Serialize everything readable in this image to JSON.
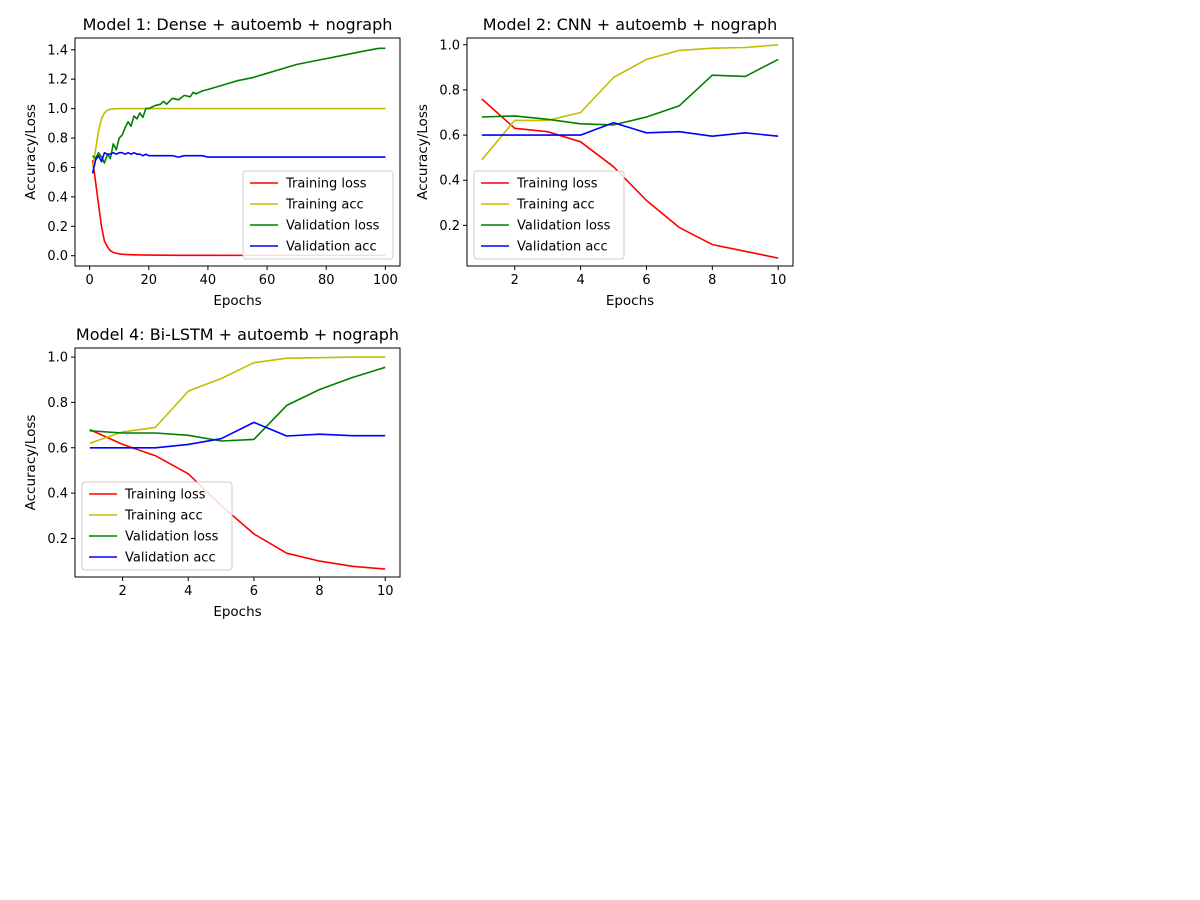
{
  "chart_data": [
    {
      "type": "line",
      "title": "Model 1: Dense + autoemb + nograph",
      "xlabel": "Epochs",
      "ylabel": "Accuracy/Loss",
      "xlim": [
        -4.95,
        104.95
      ],
      "ylim": [
        -0.07,
        1.48
      ],
      "xticks": [
        0,
        20,
        40,
        60,
        80,
        100
      ],
      "xtick_labels": [
        "0",
        "20",
        "40",
        "60",
        "80",
        "100"
      ],
      "yticks": [
        0.0,
        0.2,
        0.4,
        0.6,
        0.8,
        1.0,
        1.2,
        1.4
      ],
      "ytick_labels": [
        "0.0",
        "0.2",
        "0.4",
        "0.6",
        "0.8",
        "1.0",
        "1.2",
        "1.4"
      ],
      "legend_position": "lower-right",
      "series": [
        {
          "name": "Training loss",
          "color": "#ff0000",
          "x": [
            1,
            2,
            3,
            4,
            5,
            6,
            7,
            8,
            10,
            12,
            15,
            20,
            30,
            40,
            60,
            80,
            100
          ],
          "y": [
            0.65,
            0.5,
            0.35,
            0.2,
            0.1,
            0.06,
            0.035,
            0.022,
            0.012,
            0.008,
            0.006,
            0.004,
            0.003,
            0.003,
            0.002,
            0.002,
            0.002
          ]
        },
        {
          "name": "Training acc",
          "color": "#bfbf00",
          "x": [
            1,
            2,
            3,
            4,
            5,
            6,
            7,
            8,
            10,
            12,
            15,
            20,
            40,
            60,
            80,
            100
          ],
          "y": [
            0.6,
            0.72,
            0.85,
            0.93,
            0.97,
            0.99,
            0.995,
            0.998,
            1.0,
            1.0,
            1.0,
            1.0,
            1.0,
            1.0,
            1.0,
            1.0
          ]
        },
        {
          "name": "Validation loss",
          "color": "#008000",
          "x": [
            1,
            2,
            3,
            4,
            5,
            6,
            7,
            8,
            9,
            10,
            11,
            12,
            13,
            14,
            15,
            16,
            17,
            18,
            19,
            20,
            22,
            24,
            25,
            26,
            28,
            30,
            32,
            34,
            35,
            36,
            38,
            40,
            45,
            50,
            55,
            60,
            65,
            70,
            75,
            80,
            85,
            90,
            95,
            98,
            100
          ],
          "y": [
            0.68,
            0.66,
            0.7,
            0.67,
            0.63,
            0.69,
            0.66,
            0.76,
            0.72,
            0.8,
            0.82,
            0.87,
            0.91,
            0.88,
            0.95,
            0.93,
            0.97,
            0.94,
            1.0,
            1.0,
            1.02,
            1.03,
            1.05,
            1.03,
            1.07,
            1.06,
            1.09,
            1.08,
            1.11,
            1.1,
            1.12,
            1.13,
            1.16,
            1.19,
            1.21,
            1.24,
            1.27,
            1.3,
            1.32,
            1.34,
            1.36,
            1.38,
            1.4,
            1.41,
            1.41
          ]
        },
        {
          "name": "Validation acc",
          "color": "#0000ff",
          "x": [
            1,
            2,
            3,
            4,
            5,
            6,
            7,
            8,
            9,
            10,
            11,
            12,
            13,
            14,
            15,
            16,
            17,
            18,
            19,
            20,
            22,
            25,
            28,
            30,
            32,
            35,
            38,
            40,
            50,
            60,
            70,
            80,
            90,
            100
          ],
          "y": [
            0.56,
            0.65,
            0.68,
            0.64,
            0.7,
            0.69,
            0.69,
            0.7,
            0.69,
            0.7,
            0.7,
            0.69,
            0.7,
            0.69,
            0.7,
            0.69,
            0.69,
            0.68,
            0.69,
            0.68,
            0.68,
            0.68,
            0.68,
            0.67,
            0.68,
            0.68,
            0.68,
            0.67,
            0.67,
            0.67,
            0.67,
            0.67,
            0.67,
            0.67
          ]
        }
      ]
    },
    {
      "type": "line",
      "title": "Model 2: CNN + autoemb + nograph",
      "xlabel": "Epochs",
      "ylabel": "Accuracy/Loss",
      "xlim": [
        0.55,
        10.45
      ],
      "ylim": [
        0.02,
        1.03
      ],
      "xticks": [
        2,
        4,
        6,
        8,
        10
      ],
      "xtick_labels": [
        "2",
        "4",
        "6",
        "8",
        "10"
      ],
      "yticks": [
        0.2,
        0.4,
        0.6,
        0.8,
        1.0
      ],
      "ytick_labels": [
        "0.2",
        "0.4",
        "0.6",
        "0.8",
        "1.0"
      ],
      "legend_position": "lower-left",
      "series": [
        {
          "name": "Training loss",
          "color": "#ff0000",
          "x": [
            1,
            2,
            3,
            4,
            5,
            6,
            7,
            8,
            9,
            10
          ],
          "y": [
            0.76,
            0.63,
            0.615,
            0.57,
            0.46,
            0.31,
            0.19,
            0.115,
            0.085,
            0.055
          ]
        },
        {
          "name": "Training acc",
          "color": "#bfbf00",
          "x": [
            1,
            2,
            3,
            4,
            5,
            6,
            7,
            8,
            9,
            10
          ],
          "y": [
            0.49,
            0.665,
            0.665,
            0.7,
            0.855,
            0.935,
            0.975,
            0.985,
            0.988,
            1.0
          ]
        },
        {
          "name": "Validation loss",
          "color": "#008000",
          "x": [
            1,
            2,
            3,
            4,
            5,
            6,
            7,
            8,
            9,
            10
          ],
          "y": [
            0.68,
            0.685,
            0.67,
            0.65,
            0.645,
            0.68,
            0.73,
            0.865,
            0.86,
            0.935
          ]
        },
        {
          "name": "Validation acc",
          "color": "#0000ff",
          "x": [
            1,
            2,
            3,
            4,
            5,
            6,
            7,
            8,
            9,
            10
          ],
          "y": [
            0.6,
            0.6,
            0.6,
            0.6,
            0.655,
            0.61,
            0.615,
            0.595,
            0.61,
            0.595
          ]
        }
      ]
    },
    {
      "type": "line",
      "title": "Model 4: Bi-LSTM + autoemb + nograph",
      "xlabel": "Epochs",
      "ylabel": "Accuracy/Loss",
      "xlim": [
        0.55,
        10.45
      ],
      "ylim": [
        0.03,
        1.04
      ],
      "xticks": [
        2,
        4,
        6,
        8,
        10
      ],
      "xtick_labels": [
        "2",
        "4",
        "6",
        "8",
        "10"
      ],
      "yticks": [
        0.2,
        0.4,
        0.6,
        0.8,
        1.0
      ],
      "ytick_labels": [
        "0.2",
        "0.4",
        "0.6",
        "0.8",
        "1.0"
      ],
      "legend_position": "lower-left",
      "series": [
        {
          "name": "Training loss",
          "color": "#ff0000",
          "x": [
            1,
            2,
            3,
            4,
            5,
            6,
            7,
            8,
            9,
            10
          ],
          "y": [
            0.68,
            0.615,
            0.565,
            0.485,
            0.345,
            0.22,
            0.135,
            0.1,
            0.077,
            0.065
          ]
        },
        {
          "name": "Training acc",
          "color": "#bfbf00",
          "x": [
            1,
            2,
            3,
            4,
            5,
            6,
            7,
            8,
            9,
            10
          ],
          "y": [
            0.62,
            0.67,
            0.69,
            0.85,
            0.905,
            0.975,
            0.995,
            0.997,
            1.0,
            1.0
          ]
        },
        {
          "name": "Validation loss",
          "color": "#008000",
          "x": [
            1,
            2,
            3,
            4,
            5,
            6,
            7,
            8,
            9,
            10
          ],
          "y": [
            0.675,
            0.665,
            0.665,
            0.655,
            0.63,
            0.637,
            0.787,
            0.857,
            0.91,
            0.955
          ]
        },
        {
          "name": "Validation acc",
          "color": "#0000ff",
          "x": [
            1,
            2,
            3,
            4,
            5,
            6,
            7,
            8,
            9,
            10
          ],
          "y": [
            0.6,
            0.6,
            0.6,
            0.615,
            0.64,
            0.712,
            0.652,
            0.66,
            0.653,
            0.653
          ]
        }
      ]
    }
  ]
}
